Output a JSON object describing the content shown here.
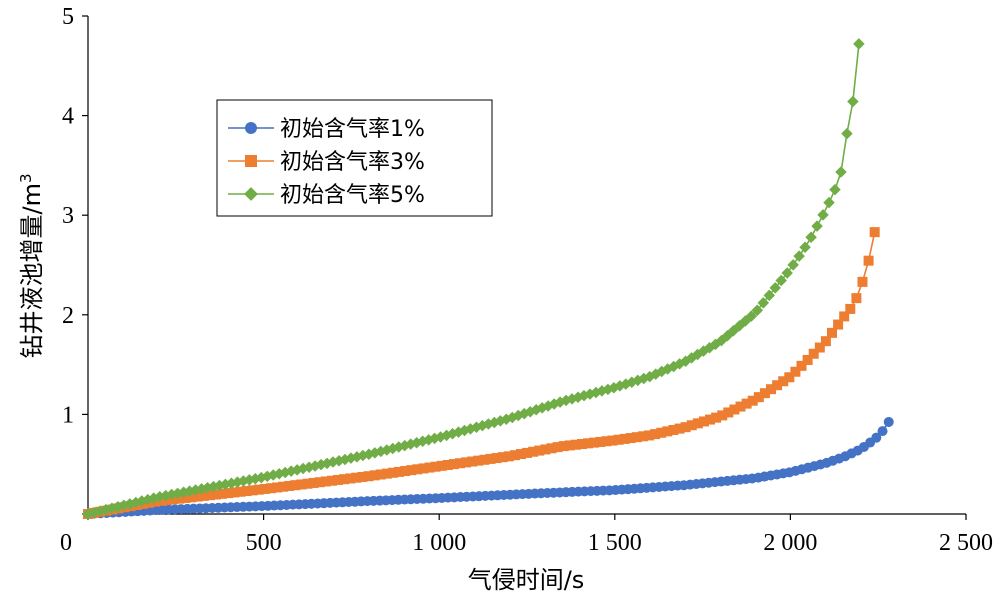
{
  "chart_data": {
    "type": "scatter",
    "title": "",
    "xlabel": "气侵时间/s",
    "ylabel": "钻井液池增量/m",
    "ylabel_superscript": "3",
    "xlim": [
      0,
      2500
    ],
    "ylim": [
      0,
      5
    ],
    "x_ticks": [
      0,
      500,
      1000,
      1500,
      2000,
      2500
    ],
    "x_tick_labels": [
      "0",
      "500",
      "1 000",
      "1 500",
      "2 000",
      "2 500"
    ],
    "y_ticks": [
      0,
      1,
      2,
      3,
      4,
      5
    ],
    "y_tick_labels": [
      "",
      "1",
      "2",
      "3",
      "4",
      "5"
    ],
    "grid": false,
    "legend_position": "upper-left",
    "series": [
      {
        "name": "初始含气率1%",
        "color": "#4472C4",
        "marker": "circle",
        "x_start": 0,
        "x_end": 2280,
        "marker_count": 130,
        "points": [
          [
            0,
            0
          ],
          [
            200,
            0.04
          ],
          [
            500,
            0.08
          ],
          [
            800,
            0.13
          ],
          [
            1000,
            0.16
          ],
          [
            1300,
            0.21
          ],
          [
            1500,
            0.24
          ],
          [
            1700,
            0.29
          ],
          [
            1900,
            0.36
          ],
          [
            2000,
            0.42
          ],
          [
            2100,
            0.51
          ],
          [
            2150,
            0.57
          ],
          [
            2200,
            0.65
          ],
          [
            2240,
            0.75
          ],
          [
            2260,
            0.82
          ],
          [
            2285,
            0.95
          ]
        ]
      },
      {
        "name": "初始含气率3%",
        "color": "#ED7D31",
        "marker": "square",
        "x_start": 0,
        "x_end": 2240,
        "marker_count": 130,
        "points": [
          [
            0,
            0
          ],
          [
            200,
            0.13
          ],
          [
            500,
            0.25
          ],
          [
            800,
            0.38
          ],
          [
            1000,
            0.48
          ],
          [
            1200,
            0.58
          ],
          [
            1350,
            0.68
          ],
          [
            1500,
            0.74
          ],
          [
            1600,
            0.79
          ],
          [
            1700,
            0.87
          ],
          [
            1800,
            0.98
          ],
          [
            1900,
            1.15
          ],
          [
            2000,
            1.38
          ],
          [
            2050,
            1.55
          ],
          [
            2100,
            1.73
          ],
          [
            2150,
            1.97
          ],
          [
            2180,
            2.1
          ],
          [
            2200,
            2.27
          ],
          [
            2220,
            2.5
          ],
          [
            2240,
            2.83
          ]
        ]
      },
      {
        "name": "初始含气率5%",
        "color": "#70AD47",
        "marker": "diamond",
        "x_start": 0,
        "x_end": 2195,
        "marker_count": 130,
        "points": [
          [
            0,
            0
          ],
          [
            200,
            0.17
          ],
          [
            500,
            0.37
          ],
          [
            800,
            0.6
          ],
          [
            1000,
            0.77
          ],
          [
            1200,
            0.96
          ],
          [
            1350,
            1.13
          ],
          [
            1500,
            1.27
          ],
          [
            1600,
            1.38
          ],
          [
            1700,
            1.53
          ],
          [
            1800,
            1.73
          ],
          [
            1900,
            2.02
          ],
          [
            2000,
            2.46
          ],
          [
            2050,
            2.72
          ],
          [
            2100,
            3.05
          ],
          [
            2130,
            3.28
          ],
          [
            2150,
            3.5
          ],
          [
            2160,
            3.8
          ],
          [
            2180,
            4.18
          ],
          [
            2195,
            4.72
          ]
        ]
      }
    ]
  }
}
